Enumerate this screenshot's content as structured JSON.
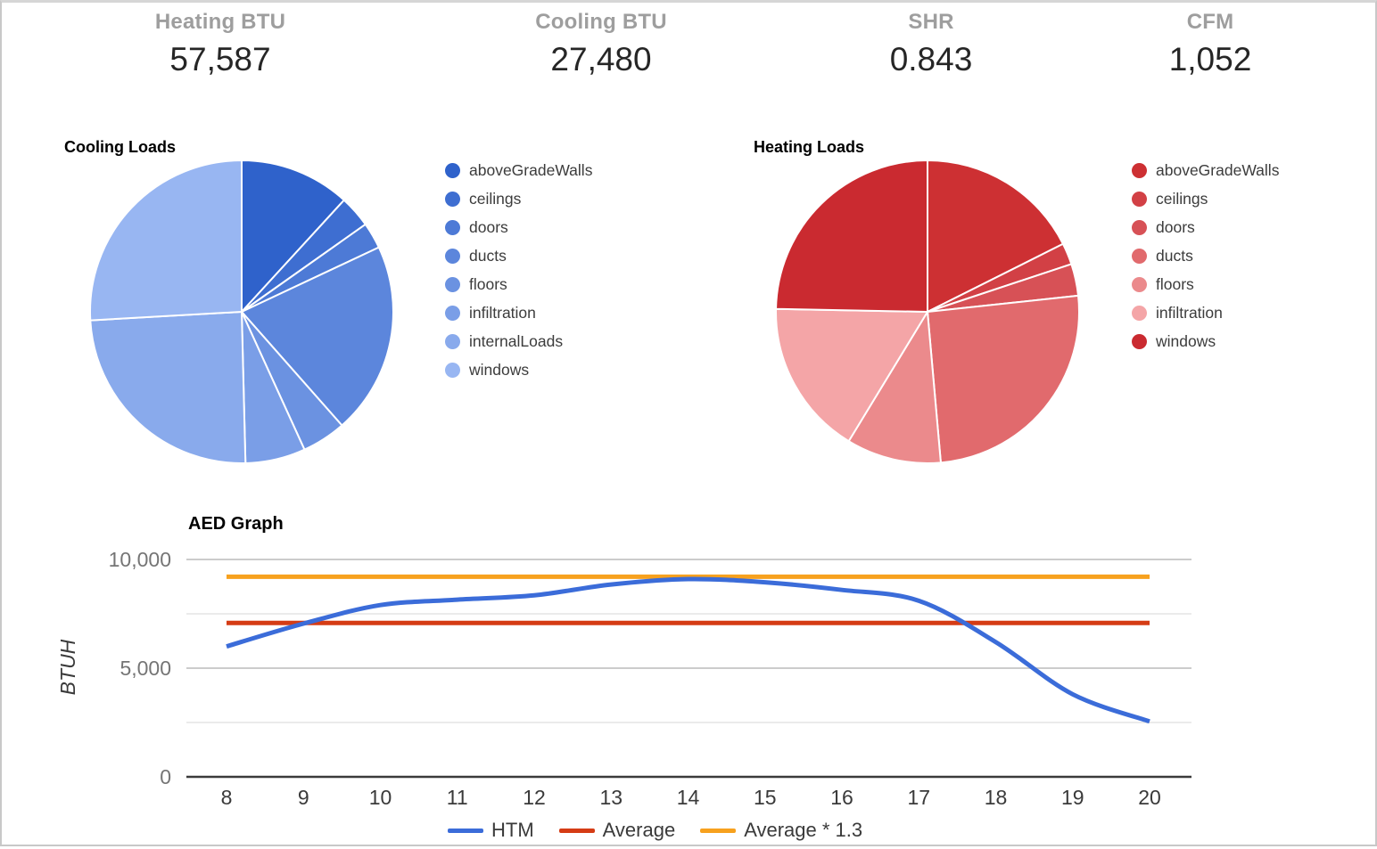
{
  "stats": [
    {
      "label": "Heating BTU",
      "value": "57,587"
    },
    {
      "label": "Cooling BTU",
      "value": "27,480"
    },
    {
      "label": "SHR",
      "value": "0.843"
    },
    {
      "label": "CFM",
      "value": "1,052"
    }
  ],
  "colors": {
    "stat_label": "#9e9e9e",
    "stat_value": "#262626",
    "htm_line": "#3b6cd9",
    "average_line": "#d53c15",
    "average13_line": "#f7a11e",
    "grid_major": "#cccccc",
    "grid_minor": "#ebebeb",
    "axis": "#3a3a3a"
  },
  "chart_data": [
    {
      "type": "pie",
      "title": "Cooling Loads",
      "unit": "percent",
      "legend_position": "right",
      "slices": [
        {
          "label": "aboveGradeWalls",
          "value": 11.8,
          "color": "#2f62cb"
        },
        {
          "label": "ceilings",
          "value": 3.4,
          "color": "#3e6ed1"
        },
        {
          "label": "doors",
          "value": 2.8,
          "color": "#4d7ad6"
        },
        {
          "label": "ducts",
          "value": 20.5,
          "color": "#5c86dc"
        },
        {
          "label": "floors",
          "value": 4.7,
          "color": "#6b92e1"
        },
        {
          "label": "infiltration",
          "value": 6.4,
          "color": "#7a9ee7"
        },
        {
          "label": "internalLoads",
          "value": 24.5,
          "color": "#89aaec"
        },
        {
          "label": "windows",
          "value": 25.9,
          "color": "#98b6f2"
        }
      ]
    },
    {
      "type": "pie",
      "title": "Heating Loads",
      "unit": "percent",
      "legend_position": "right",
      "slices": [
        {
          "label": "aboveGradeWalls",
          "value": 17.6,
          "color": "#cd3033"
        },
        {
          "label": "ceilings",
          "value": 2.3,
          "color": "#d24045"
        },
        {
          "label": "doors",
          "value": 3.4,
          "color": "#d75156"
        },
        {
          "label": "ducts",
          "value": 25.3,
          "color": "#e16a6d"
        },
        {
          "label": "floors",
          "value": 10.1,
          "color": "#eb8a8c"
        },
        {
          "label": "infiltration",
          "value": 16.6,
          "color": "#f4a5a7"
        },
        {
          "label": "windows",
          "value": 24.7,
          "color": "#ca2a30"
        }
      ]
    },
    {
      "type": "line",
      "title": "AED Graph",
      "xlabel": "",
      "ylabel": "BTUH",
      "ylim": [
        0,
        10000
      ],
      "x": [
        8,
        9,
        10,
        11,
        12,
        13,
        14,
        15,
        16,
        17,
        18,
        19,
        20
      ],
      "series": [
        {
          "name": "HTM",
          "color": "#3b6cd9",
          "smooth": true,
          "values": [
            6000,
            7050,
            7900,
            8150,
            8350,
            8850,
            9100,
            8950,
            8600,
            8100,
            6200,
            3800,
            2550
          ]
        },
        {
          "name": "Average",
          "color": "#d53c15",
          "constant": 7080
        },
        {
          "name": "Average * 1.3",
          "color": "#f7a11e",
          "constant": 9204
        }
      ],
      "yticks": [
        {
          "value": 0,
          "label": "0"
        },
        {
          "value": 5000,
          "label": "5,000"
        },
        {
          "value": 10000,
          "label": "10,000"
        }
      ],
      "grid_values": [
        2500,
        5000,
        7500,
        10000
      ],
      "legend_position": "bottom"
    }
  ]
}
